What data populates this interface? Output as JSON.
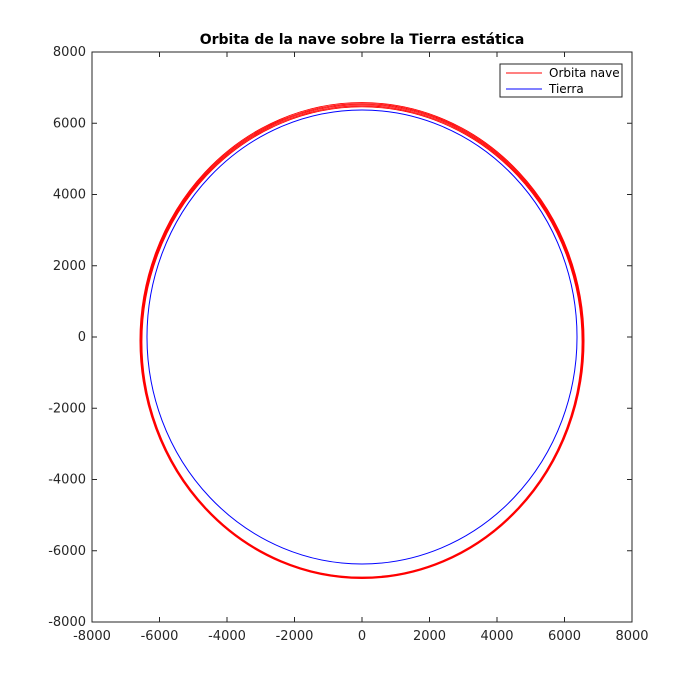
{
  "chart_data": {
    "type": "line",
    "title": "Orbita de la nave sobre la Tierra estática",
    "xlabel": "",
    "ylabel": "",
    "xlim": [
      -8000,
      8000
    ],
    "ylim": [
      -8000,
      8000
    ],
    "xticks": [
      -8000,
      -6000,
      -4000,
      -2000,
      0,
      2000,
      4000,
      6000,
      8000
    ],
    "yticks": [
      -8000,
      -6000,
      -4000,
      -2000,
      0,
      2000,
      4000,
      6000,
      8000
    ],
    "grid": false,
    "legend_position": "top-right",
    "series": [
      {
        "name": "Orbita nave",
        "color": "#ff0000",
        "kind": "ellipse-family",
        "ellipses": [
          {
            "center_x": 0,
            "center_y": -140,
            "radius_x": 6520,
            "radius_y": 6600
          },
          {
            "center_x": 0,
            "center_y": -130,
            "radius_x": 6535,
            "radius_y": 6620
          },
          {
            "center_x": 0,
            "center_y": -120,
            "radius_x": 6550,
            "radius_y": 6640
          },
          {
            "center_x": 0,
            "center_y": -110,
            "radius_x": 6565,
            "radius_y": 6660
          },
          {
            "center_x": 0,
            "center_y": -100,
            "radius_x": 6580,
            "radius_y": 6680
          }
        ]
      },
      {
        "name": "Tierra",
        "color": "#0000ff",
        "kind": "circle",
        "center_x": 0,
        "center_y": 0,
        "radius": 6371
      }
    ]
  }
}
